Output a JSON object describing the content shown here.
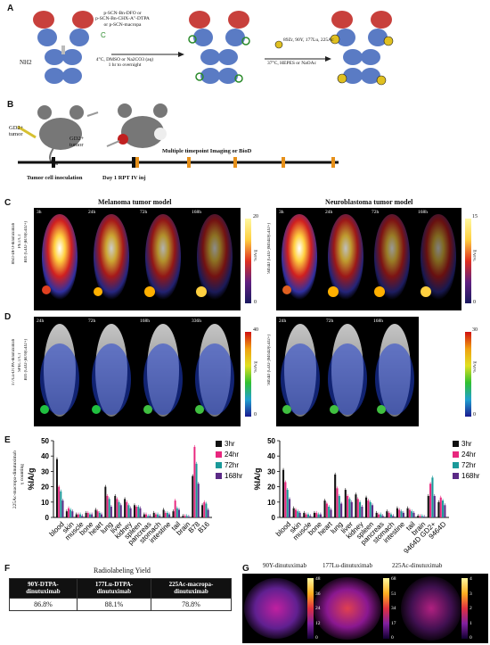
{
  "panels": {
    "A": {
      "label": "A",
      "reagents": [
        "p-SCN-Bn-DFO or",
        "p-SCN-Bn-CHX-A\"-DTPA",
        "or p-SCN-macropa"
      ],
      "conditions": [
        "4°C, DMSO or Na2CO3 (aq)",
        "1 hr to overnight"
      ],
      "nh2": "NH2",
      "isotopes": "89Zr, 90Y, 177Lu, 225Ac",
      "isotope_conditions": "37°C, HEPES or NaOAc"
    },
    "B": {
      "label": "B",
      "gd2_tumor_1": "GD2+",
      "gd2_tumor_1b": "tumor",
      "gd2_tumor_2": "GD2+",
      "gd2_tumor_2b": "tumor",
      "timeline_label": "Multiple timepoint Imaging or BioD",
      "inoculation": "Tumor cell inoculation",
      "day1": "Day 1 RPT IV inj"
    },
    "C": {
      "label": "C",
      "melanoma_title": "Melanoma tumor model",
      "neuroblastoma_title": "Neuroblastoma tumor model",
      "left_axis_1": "89Zr-DFO-dinutuximab",
      "left_axis_2": "PET/CT",
      "left_axis_3": "B16 (GD2-)B78(GD2+)",
      "right_axis": "9464D (GD2-)9464D(GD2+)",
      "timepoints": [
        "3h",
        "24h",
        "72h",
        "168h"
      ],
      "cbar_left": {
        "max": "20",
        "min": "0",
        "unit": "%IA/g"
      },
      "cbar_right": {
        "max": "15",
        "min": "0",
        "unit": "%IA/g"
      }
    },
    "D": {
      "label": "D",
      "left_axis_1": "177Lu-DTPA-dinutuximab",
      "left_axis_2": "SPECT/CT",
      "left_axis_3": "B16 (GD2-)B78(GD2+)",
      "right_axis": "9464D (GD2-)9464D(GD2+)",
      "timepoints_left": [
        "24h",
        "72h",
        "168h",
        "336h"
      ],
      "timepoints_right": [
        "24h",
        "72h",
        "168h"
      ],
      "cbar_left": {
        "max": "40",
        "min": "0",
        "unit": "%IA/g"
      },
      "cbar_right": {
        "max": "30",
        "min": "0",
        "unit": "%IA/g"
      }
    },
    "E": {
      "label": "E",
      "side_axis_1": "225Ac-macropa-dinutuximab",
      "side_axis_2": "γ counting",
      "ylabel": "%IA/g"
    },
    "F": {
      "label": "F",
      "title": "Radiolabeling Yield",
      "headers": [
        "90Y-DTPA-dinutuximab",
        "177Lu-DTPA-dinutuximab",
        "225Ac-macropa-dinutuximab"
      ],
      "values": [
        "86.8%",
        "88.1%",
        "78.8%"
      ]
    },
    "G": {
      "label": "G",
      "titles": [
        "90Y-dinutuximab",
        "177Lu-dinutuximab",
        "225Ac-dinutuximab"
      ],
      "cbar1": [
        "48",
        "36",
        "24",
        "12",
        "0"
      ],
      "cbar2": [
        "68",
        "51",
        "34",
        "17",
        "0"
      ],
      "cbar3": [
        "4",
        "3",
        "2",
        "1",
        "0"
      ]
    }
  },
  "chart_data": [
    {
      "type": "bar",
      "ylabel": "%IA/g",
      "ylim": [
        0,
        50
      ],
      "categories": [
        "blood",
        "skin",
        "muscle",
        "bone",
        "heart",
        "lung",
        "liver",
        "kidney",
        "spleen",
        "pancreas",
        "stomach",
        "intestine",
        "tail",
        "brain",
        "B78",
        "B16"
      ],
      "series": [
        {
          "name": "3hr",
          "color": "#111111",
          "values": [
            38,
            4,
            2,
            3,
            5,
            20,
            14,
            12,
            8,
            2,
            3,
            5,
            4,
            1,
            27,
            8
          ]
        },
        {
          "name": "24hr",
          "color": "#e8277e",
          "values": [
            20,
            6,
            2,
            3,
            4,
            14,
            12,
            10,
            7,
            2,
            2,
            3,
            11,
            1,
            46,
            10
          ]
        },
        {
          "name": "72hr",
          "color": "#1a9a9a",
          "values": [
            17,
            5,
            2,
            2,
            3,
            12,
            10,
            8,
            7,
            1,
            2,
            3,
            6,
            1,
            35,
            9
          ]
        },
        {
          "name": "168hr",
          "color": "#5b2a86",
          "values": [
            11,
            4,
            1,
            2,
            2,
            7,
            8,
            6,
            6,
            1,
            1,
            2,
            5,
            0.5,
            22,
            5
          ]
        }
      ]
    },
    {
      "type": "bar",
      "ylabel": "%IA/g",
      "ylim": [
        0,
        50
      ],
      "categories": [
        "blood",
        "skin",
        "muscle",
        "bone",
        "heart",
        "lung",
        "liver",
        "kidney",
        "spleen",
        "pancreas",
        "stomach",
        "intestine",
        "tail",
        "brain",
        "9464D GD2+",
        "9464D"
      ],
      "series": [
        {
          "name": "3hr",
          "color": "#111111",
          "values": [
            31,
            6,
            3,
            3,
            11,
            28,
            18,
            15,
            13,
            3,
            4,
            6,
            6,
            1,
            14,
            10
          ]
        },
        {
          "name": "24hr",
          "color": "#e8277e",
          "values": [
            23,
            5,
            2,
            3,
            9,
            19,
            14,
            12,
            11,
            2,
            3,
            5,
            5,
            1,
            22,
            13
          ]
        },
        {
          "name": "72hr",
          "color": "#1a9a9a",
          "values": [
            18,
            4,
            2,
            2,
            7,
            14,
            12,
            10,
            10,
            2,
            2,
            4,
            4,
            1,
            26,
            11
          ]
        },
        {
          "name": "168hr",
          "color": "#5b2a86",
          "values": [
            12,
            3,
            1,
            2,
            5,
            9,
            10,
            7,
            8,
            1,
            1,
            3,
            3,
            0.5,
            14,
            8
          ]
        }
      ]
    }
  ]
}
